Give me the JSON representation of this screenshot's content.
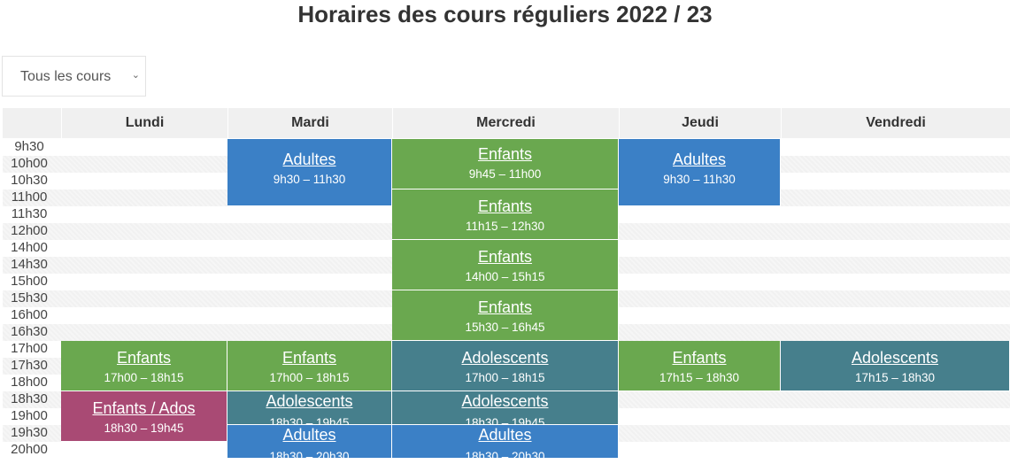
{
  "title": "Horaires des cours réguliers 2022 / 23",
  "filter": {
    "value": "Tous les cours"
  },
  "days": [
    "Lundi",
    "Mardi",
    "Mercredi",
    "Jeudi",
    "Vendredi"
  ],
  "times": [
    "9h30",
    "10h00",
    "10h30",
    "11h00",
    "11h30",
    "12h00",
    "14h00",
    "14h30",
    "15h00",
    "15h30",
    "16h00",
    "16h30",
    "17h00",
    "17h30",
    "18h00",
    "18h30",
    "19h00",
    "19h30",
    "20h00"
  ],
  "colors": {
    "adultes": "#3b80c6",
    "enfants": "#6aa84f",
    "adolescents": "#467f8c",
    "enfants_ados": "#a94a74"
  },
  "events": [
    {
      "day": "Mardi",
      "name": "Adultes",
      "time": "9h30 – 11h30",
      "color": "adultes"
    },
    {
      "day": "Mercredi",
      "name": "Enfants",
      "time": "9h45 – 11h00",
      "color": "enfants"
    },
    {
      "day": "Jeudi",
      "name": "Adultes",
      "time": "9h30 – 11h30",
      "color": "adultes"
    },
    {
      "day": "Mercredi",
      "name": "Enfants",
      "time": "11h15 – 12h30",
      "color": "enfants"
    },
    {
      "day": "Mercredi",
      "name": "Enfants",
      "time": "14h00 – 15h15",
      "color": "enfants"
    },
    {
      "day": "Mercredi",
      "name": "Enfants",
      "time": "15h30 – 16h45",
      "color": "enfants"
    },
    {
      "day": "Lundi",
      "name": "Enfants",
      "time": "17h00 – 18h15",
      "color": "enfants"
    },
    {
      "day": "Mardi",
      "name": "Enfants",
      "time": "17h00 – 18h15",
      "color": "enfants"
    },
    {
      "day": "Mercredi",
      "name": "Adolescents",
      "time": "17h00 – 18h15",
      "color": "adolescents"
    },
    {
      "day": "Jeudi",
      "name": "Enfants",
      "time": "17h15 – 18h30",
      "color": "enfants"
    },
    {
      "day": "Vendredi",
      "name": "Adolescents",
      "time": "17h15 – 18h30",
      "color": "adolescents"
    },
    {
      "day": "Lundi",
      "name": "Enfants / Ados",
      "time": "18h30 – 19h45",
      "color": "enfants_ados"
    },
    {
      "day": "Mardi",
      "name": "Adolescents",
      "time": "18h30 – 19h45",
      "color": "adolescents"
    },
    {
      "day": "Mercredi",
      "name": "Adolescents",
      "time": "18h30 – 19h45",
      "color": "adolescents"
    },
    {
      "day": "Mardi",
      "name": "Adultes",
      "time": "18h30 – 20h30",
      "color": "adultes"
    },
    {
      "day": "Mercredi",
      "name": "Adultes",
      "time": "18h30 – 20h30",
      "color": "adultes"
    }
  ]
}
